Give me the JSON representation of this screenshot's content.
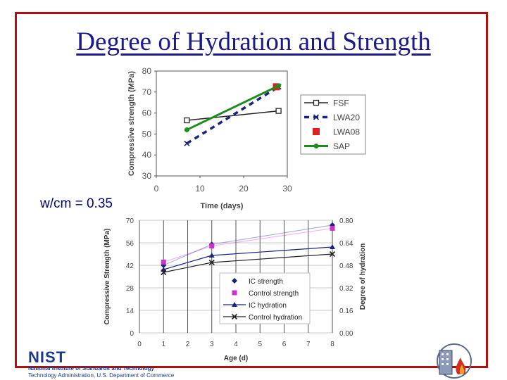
{
  "slide": {
    "title": "Degree of Hydration and Strength",
    "wcm_label": "w/cm = 0.35"
  },
  "footer": {
    "nist_wordmark": "NIST",
    "nist_name": "National Institute of Standards and Technology",
    "nist_sub": "Technology Administration, U.S. Department of Commerce",
    "emblem_icon": "building-flame-emblem-icon"
  },
  "chart_data": [
    {
      "type": "line",
      "title": "",
      "xlabel": "Time (days)",
      "ylabel": "Compressive strength (MPa)",
      "xlim": [
        0,
        30
      ],
      "ylim": [
        30,
        80
      ],
      "xticks": [
        "0",
        "10",
        "20",
        "30"
      ],
      "yticks": [
        "30",
        "40",
        "50",
        "60",
        "70",
        "80"
      ],
      "grid": false,
      "legend_position": "right",
      "series": [
        {
          "name": "FSF",
          "color": "#222222",
          "marker": "open-square",
          "x": [
            7,
            28
          ],
          "y": [
            56.5,
            61
          ]
        },
        {
          "name": "LWA20",
          "color": "#1a237e",
          "marker": "x",
          "dashed": true,
          "x": [
            7,
            28
          ],
          "y": [
            45.5,
            72.5
          ]
        },
        {
          "name": "LWA08",
          "color": "#e02020",
          "marker": "filled-square",
          "x": [
            27.5
          ],
          "y": [
            72.5
          ]
        },
        {
          "name": "SAP",
          "color": "#1e8c1e",
          "marker": "filled-circle",
          "x": [
            7,
            28
          ],
          "y": [
            52,
            73
          ]
        }
      ]
    },
    {
      "type": "line",
      "title": "",
      "xlabel": "Age (d)",
      "ylabel": "Compressive Strength (MPa)",
      "y2label": "Degree of hydration",
      "xlim": [
        0,
        8
      ],
      "ylim": [
        0,
        70
      ],
      "y2lim": [
        0.0,
        0.8
      ],
      "xticks": [
        "0",
        "1",
        "2",
        "3",
        "4",
        "5",
        "6",
        "7",
        "8"
      ],
      "yticks": [
        "0",
        "14",
        "28",
        "42",
        "56",
        "70"
      ],
      "y2ticks": [
        "0.00",
        "0.16",
        "0.32",
        "0.48",
        "0.64",
        "0.80"
      ],
      "grid": true,
      "legend_position": "bottom-center",
      "series": [
        {
          "name": "IC strength",
          "color": "#1a237e",
          "marker": "diamond",
          "axis": "left",
          "x": [
            1,
            3,
            8
          ],
          "y": [
            42,
            55,
            67
          ]
        },
        {
          "name": "Control strength",
          "color": "#d030d0",
          "marker": "square",
          "axis": "left",
          "x": [
            1,
            3,
            8
          ],
          "y": [
            44,
            54,
            65
          ]
        },
        {
          "name": "IC hydration",
          "color": "#1a237e",
          "marker": "triangle",
          "axis": "right",
          "x": [
            1,
            3,
            8
          ],
          "y": [
            0.45,
            0.55,
            0.61
          ]
        },
        {
          "name": "Control hydration",
          "color": "#222222",
          "marker": "x",
          "axis": "right",
          "x": [
            1,
            3,
            8
          ],
          "y": [
            0.43,
            0.5,
            0.56
          ]
        }
      ]
    }
  ]
}
